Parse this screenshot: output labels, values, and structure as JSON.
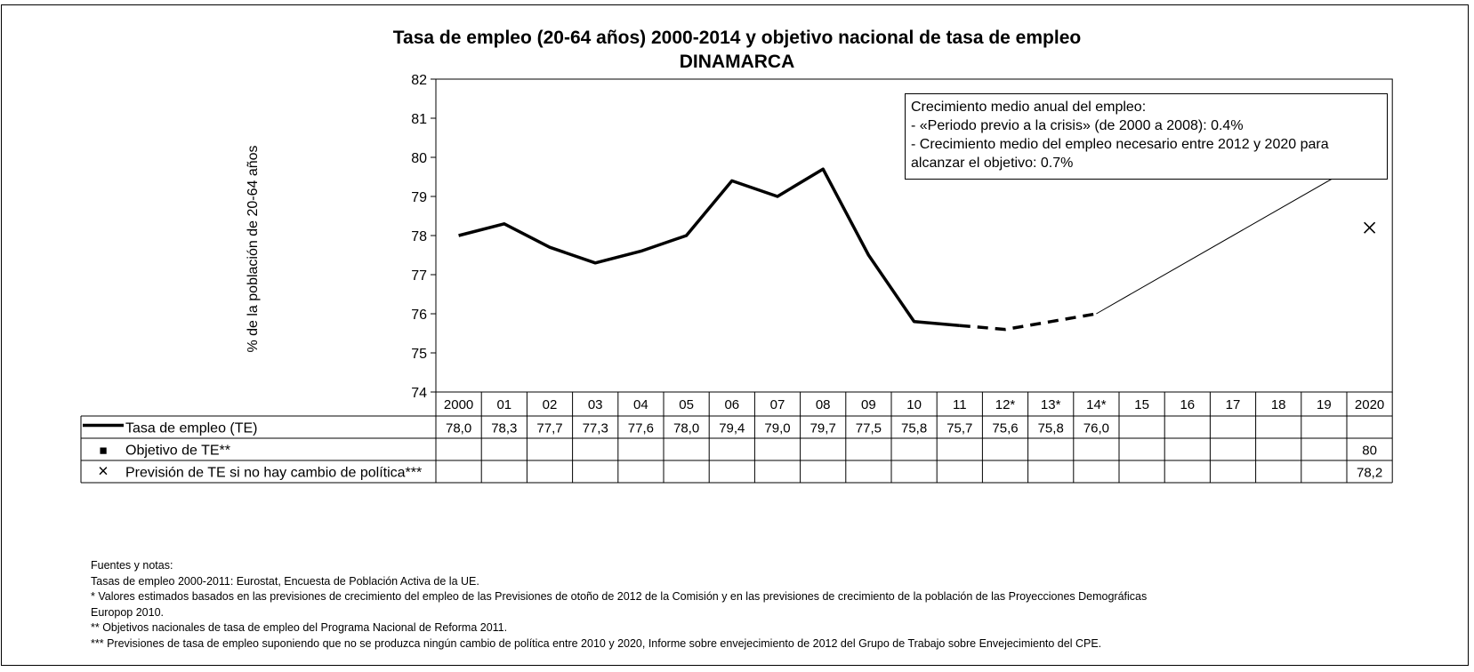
{
  "chart_data": {
    "type": "line",
    "title": "Tasa de empleo (20-64 años) 2000-2014 y objetivo nacional de tasa de empleo",
    "subtitle": "DINAMARCA",
    "ylabel": "% de la población de 20-64 años",
    "ylim": [
      74,
      82
    ],
    "yticks": [
      "74",
      "75",
      "76",
      "77",
      "78",
      "79",
      "80",
      "81",
      "82"
    ],
    "categories": [
      "2000",
      "01",
      "02",
      "03",
      "04",
      "05",
      "06",
      "07",
      "08",
      "09",
      "10",
      "11",
      "12*",
      "13*",
      "14*",
      "15",
      "16",
      "17",
      "18",
      "19",
      "2020"
    ],
    "grid": false,
    "legend": "data-table",
    "series": [
      {
        "name": "Tasa de empleo (TE)",
        "marker": "line",
        "values": [
          78.0,
          78.3,
          77.7,
          77.3,
          77.6,
          78.0,
          79.4,
          79.0,
          79.7,
          77.5,
          75.8,
          75.7,
          75.6,
          75.8,
          76.0,
          null,
          null,
          null,
          null,
          null,
          null
        ],
        "labels": [
          "78,0",
          "78,3",
          "77,7",
          "77,3",
          "77,6",
          "78,0",
          "79,4",
          "79,0",
          "79,7",
          "77,5",
          "75,8",
          "75,7",
          "75,6",
          "75,8",
          "76,0",
          "",
          "",
          "",
          "",
          "",
          ""
        ],
        "estimated_from_index": 12
      },
      {
        "name": "Objetivo de TE**",
        "marker": "■",
        "values": [
          null,
          null,
          null,
          null,
          null,
          null,
          null,
          null,
          null,
          null,
          null,
          null,
          null,
          null,
          null,
          null,
          null,
          null,
          null,
          null,
          80
        ],
        "labels": [
          "",
          "",
          "",
          "",
          "",
          "",
          "",
          "",
          "",
          "",
          "",
          "",
          "",
          "",
          "",
          "",
          "",
          "",
          "",
          "",
          "80"
        ]
      },
      {
        "name": "Previsión de TE si no hay cambio de política***",
        "marker": "×",
        "values": [
          null,
          null,
          null,
          null,
          null,
          null,
          null,
          null,
          null,
          null,
          null,
          null,
          null,
          null,
          null,
          null,
          null,
          null,
          null,
          null,
          78.2
        ],
        "labels": [
          "",
          "",
          "",
          "",
          "",
          "",
          "",
          "",
          "",
          "",
          "",
          "",
          "",
          "",
          "",
          "",
          "",
          "",
          "",
          "",
          "78,2"
        ]
      }
    ],
    "target_path": {
      "from": [
        "14*",
        76.0
      ],
      "to": [
        "2020",
        80
      ]
    },
    "annotation": [
      "Crecimiento medio anual del empleo:",
      "- «Periodo previo a la crisis» (de 2000 a 2008): 0.4%",
      "- Crecimiento medio del empleo necesario entre 2012 y 2020 para",
      "alcanzar el objetivo: 0.7%"
    ]
  },
  "notes": [
    "Fuentes y notas:",
    "Tasas de empleo 2000-2011: Eurostat, Encuesta de Población Activa de la UE.",
    "* Valores estimados basados en las previsiones de crecimiento del empleo de las Previsiones de otoño de 2012 de la Comisión y en las previsiones de crecimiento de la población de las Proyecciones Demográficas",
    "Europop 2010.",
    "** Objetivos nacionales de tasa de empleo del Programa Nacional de Reforma 2011.",
    "*** Previsiones de tasa de empleo suponiendo que no se produzca ningún cambio de política entre 2010 y 2020, Informe sobre envejecimiento de 2012 del Grupo de Trabajo sobre Envejecimiento del CPE."
  ]
}
